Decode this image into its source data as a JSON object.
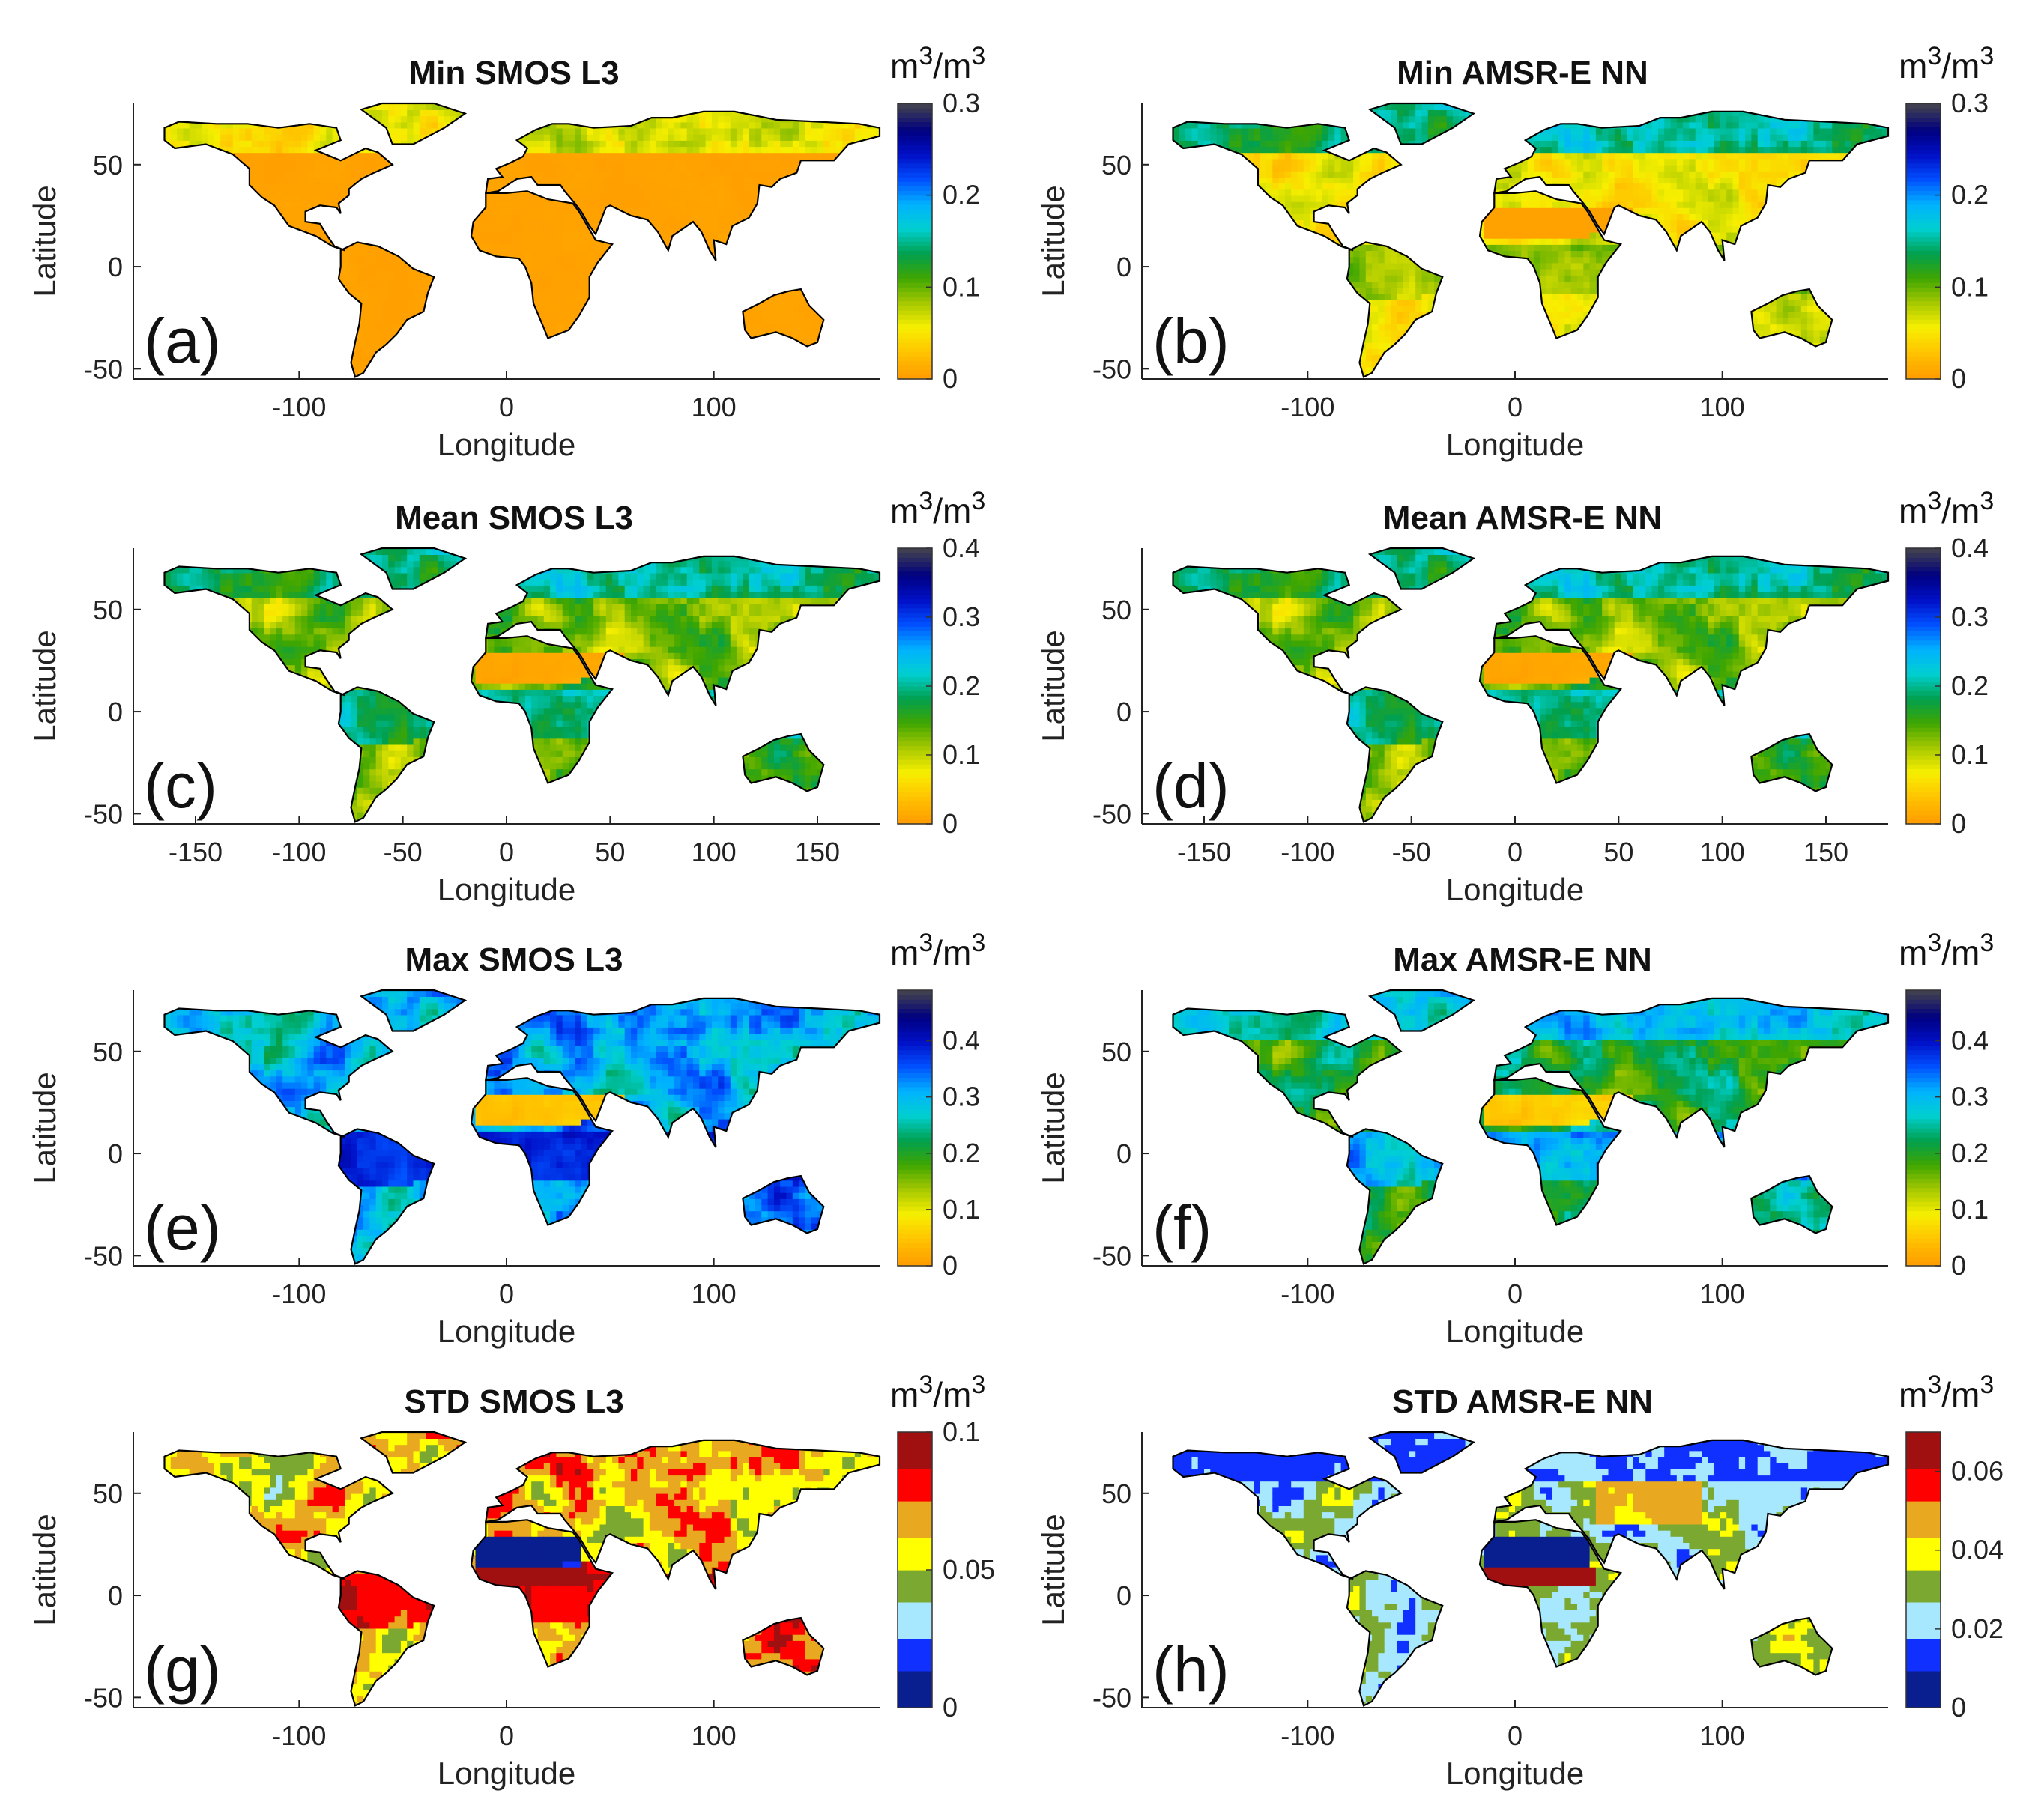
{
  "units": {
    "base": "m",
    "exp": "3",
    "tail": "/m"
  },
  "axis_labels": {
    "x": "Longitude",
    "y": "Latitude"
  },
  "y_ticks": [
    "50",
    "0",
    "-50"
  ],
  "x_ticks_hundreds": [
    "-100",
    "0",
    "100"
  ],
  "x_ticks_fifties": [
    "-150",
    "-100",
    "-50",
    "0",
    "50",
    "100",
    "150"
  ],
  "colorbar_ticks": {
    "min": [
      "0.3",
      "0.2",
      "0.1",
      "0"
    ],
    "mean": [
      "0.4",
      "0.3",
      "0.2",
      "0.1",
      "0"
    ],
    "max": [
      "0.4",
      "0.3",
      "0.2",
      "0.1",
      "0"
    ],
    "std_smos": [
      "0.1",
      "0.05",
      "0"
    ],
    "std_amsr": [
      "0.06",
      "0.04",
      "0.02",
      "0"
    ]
  },
  "colors": {
    "jet_like": [
      "#ff9e00",
      "#ffc400",
      "#f7ef00",
      "#a6c800",
      "#3fa600",
      "#00a050",
      "#00d0d0",
      "#00b2ff",
      "#0050ff",
      "#0010c8",
      "#000080",
      "#404050"
    ],
    "std_classes": [
      "#0a1f8f",
      "#1030ff",
      "#a8e8ff",
      "#7aa830",
      "#ffff00",
      "#e8a820",
      "#ff0000",
      "#a01010"
    ],
    "land_dry": "#ff9e00",
    "coast": "#000000"
  },
  "panels": [
    {
      "id": "a",
      "title": "Min SMOS L3",
      "label": "(a)",
      "ticks": "min",
      "x_ticks": "hundreds",
      "pattern": "min_smos"
    },
    {
      "id": "b",
      "title": "Min AMSR-E NN",
      "label": "(b)",
      "ticks": "min",
      "x_ticks": "hundreds",
      "pattern": "min_amsr"
    },
    {
      "id": "c",
      "title": "Mean SMOS L3",
      "label": "(c)",
      "ticks": "mean",
      "x_ticks": "fifties",
      "pattern": "mean"
    },
    {
      "id": "d",
      "title": "Mean AMSR-E NN",
      "label": "(d)",
      "ticks": "mean",
      "x_ticks": "fifties",
      "pattern": "mean"
    },
    {
      "id": "e",
      "title": "Max SMOS L3",
      "label": "(e)",
      "ticks": "max",
      "x_ticks": "hundreds",
      "pattern": "max_smos"
    },
    {
      "id": "f",
      "title": "Max AMSR-E NN",
      "label": "(f)",
      "ticks": "max",
      "x_ticks": "hundreds",
      "pattern": "max_amsr"
    },
    {
      "id": "g",
      "title": "STD SMOS L3",
      "label": "(g)",
      "ticks": "std_smos",
      "x_ticks": "hundreds",
      "pattern": "std_smos"
    },
    {
      "id": "h",
      "title": "STD AMSR-E NN",
      "label": "(h)",
      "ticks": "std_amsr",
      "x_ticks": "hundreds",
      "pattern": "std_amsr"
    }
  ]
}
